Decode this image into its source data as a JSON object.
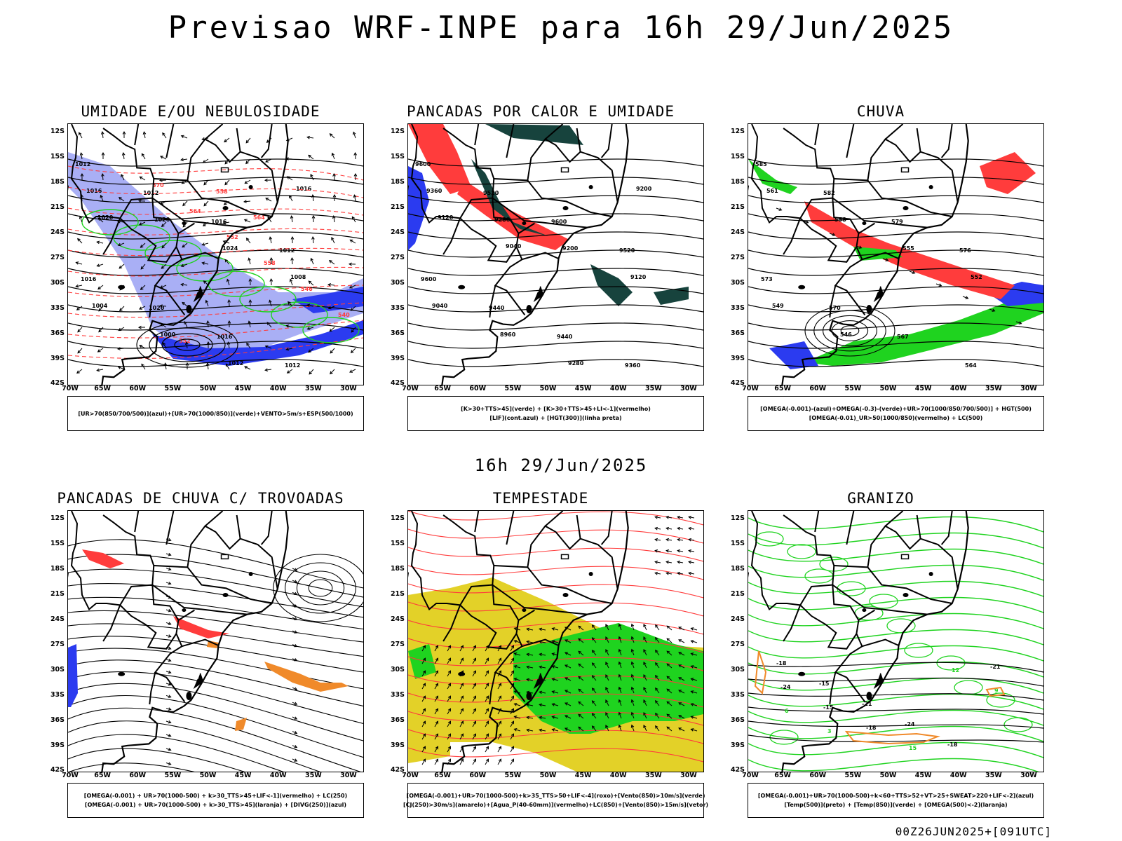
{
  "header": {
    "title": "Previsao WRF-INPE  para 16h 29/Jun/2025",
    "mid_title": "16h 29/Jun/2025",
    "footer": "00Z26JUN2025+[091UTC]"
  },
  "axes": {
    "lat_labels": [
      "12S",
      "15S",
      "18S",
      "21S",
      "24S",
      "27S",
      "30S",
      "33S",
      "36S",
      "39S",
      "42S"
    ],
    "lon_labels": [
      "70W",
      "65W",
      "60W",
      "55W",
      "50W",
      "45W",
      "40W",
      "35W",
      "30W"
    ]
  },
  "panels": [
    {
      "id": "umidade",
      "title": "UMIDADE E/OU NEBULOSIDADE",
      "legend": [
        "[UR>70(850/700/500)](azul)+[UR>70(1000/850)](verde)+VENTO>5m/s+ESP(500/1000)"
      ],
      "contour_labels": [
        "1012",
        "1012",
        "1016",
        "1012",
        "1016",
        "1020",
        "1016",
        "1012",
        "1016",
        "1020",
        "1024",
        "1008",
        "1004",
        "1000",
        "1012",
        "1016",
        "1020"
      ],
      "thickness_labels": [
        "570",
        "564",
        "552",
        "558",
        "546",
        "540",
        "552",
        "558",
        "564"
      ]
    },
    {
      "id": "pancadas-calor",
      "title": "PANCADAS POR CALOR E UMIDADE",
      "legend": [
        "[K>30+TTS>45](verde) + [K>30+TTS>45+LI<-1](vermelho)",
        "[LIF](cont.azul) + [HGT(300)](linha preta)"
      ],
      "contour_labels": [
        "9600",
        "9520",
        "9600",
        "9520",
        "9600",
        "9440",
        "9440",
        "9360",
        "9360",
        "9280",
        "9200",
        "9120",
        "9040",
        "8960",
        "9280",
        "9200",
        "9120",
        "9040"
      ]
    },
    {
      "id": "chuva",
      "title": "CHUVA",
      "legend": [
        "[OMEGA(-0.001)-(azul)+OMEGA(-0.3)-(verde)+UR>70(1000/850/700/500)] + HGT(500)",
        "[OMEGA(-0.01)_UR>50(1000/850)(vermelho) + LC(500)"
      ],
      "contour_labels": [
        "585",
        "582",
        "579",
        "576",
        "573",
        "570",
        "567",
        "564",
        "561",
        "558",
        "555",
        "552",
        "549",
        "546"
      ]
    },
    {
      "id": "pancadas-trovoadas",
      "title": "PANCADAS DE CHUVA C/ TROVOADAS",
      "legend": [
        "[OMEGA(-0.001) + UR>70(1000-500) + k>30_TTS>45+LIF<-1](vermelho) + LC(250)",
        "[OMEGA(-0.001) + UR>70(1000-500) + k>30_TTS>45](laranja) + [DIVG(250)](azul)"
      ]
    },
    {
      "id": "tempestade",
      "title": "TEMPESTADE",
      "legend": [
        "[OMEGA(-0.001)+UR>70(1000-500)+k>35_TTS>50+LIF<-4](roxo)+[Vento(850)>10m/s](verde)",
        "[CJ(250)>30m/s](amarelo)+[Agua_P(40-60mm)](vermelho)+LC(850)+[Vento(850)>15m/s](vetor)"
      ]
    },
    {
      "id": "granizo",
      "title": "GRANIZO",
      "legend": [
        "[OMEGA(-0.001)+UR>70(1000-500)+k<60+TTS>52+VT>25+SWEAT>220+LIF<-2](azul)",
        "[Temp(500)](preto) + [Temp(850)](verde) + [OMEGA(500)<-2](laranja)"
      ],
      "contour_labels": [
        "-18",
        "-15",
        "-21",
        "-24",
        "-18",
        "-21",
        "-24",
        "-15",
        "-18",
        "15",
        "12",
        "9",
        "6",
        "3"
      ]
    }
  ],
  "colors": {
    "blue_shade": "#a9aff5",
    "blue": "#2b3bf0",
    "green": "#1fd31f",
    "red": "#ff3c3c",
    "dark_teal": "#17433d",
    "yellow": "#e3d128",
    "orange": "#f08a2a"
  }
}
